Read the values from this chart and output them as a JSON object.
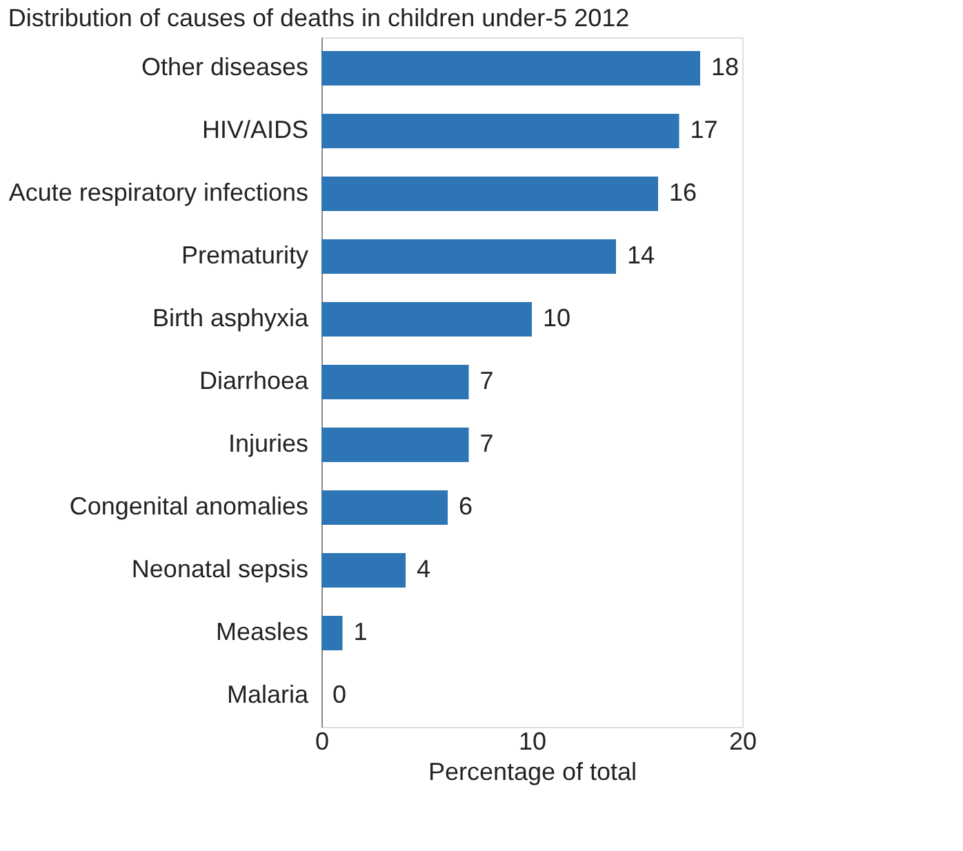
{
  "chart_data": {
    "type": "bar",
    "orientation": "horizontal",
    "title": "Distribution of causes of deaths in children under-5  2012",
    "xlabel": "Percentage of total",
    "categories": [
      "Other diseases",
      "HIV/AIDS",
      "Acute respiratory infections",
      "Prematurity",
      "Birth asphyxia",
      "Diarrhoea",
      "Injuries",
      "Congenital anomalies",
      "Neonatal sepsis",
      "Measles",
      "Malaria"
    ],
    "values": [
      18,
      17,
      16,
      14,
      10,
      7,
      7,
      6,
      4,
      1,
      0
    ],
    "color": "#2e75b6",
    "xlim": [
      0,
      20
    ],
    "xticks": [
      0,
      10,
      20
    ],
    "data_labels": true,
    "grid": false
  }
}
